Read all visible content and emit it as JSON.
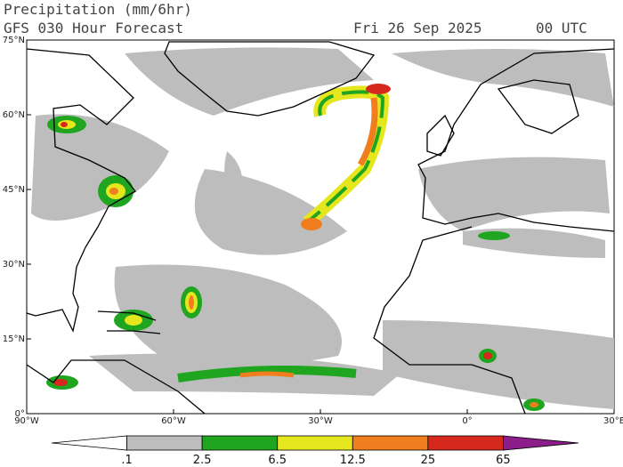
{
  "header": {
    "title": "Precipitation (mm/6hr)",
    "model": "GFS 030 Hour Forecast",
    "date": "Fri 26 Sep 2025",
    "time": "00 UTC"
  },
  "map": {
    "lat_labels": [
      "75°N",
      "60°N",
      "45°N",
      "30°N",
      "15°N",
      "0°"
    ],
    "lon_labels": [
      "90°W",
      "60°W",
      "30°W",
      "0°",
      "30°E"
    ]
  },
  "legend": {
    "levels": [
      {
        "value": 0.1,
        "label": ".1"
      },
      2.5,
      6.5,
      12.5,
      25,
      65
    ],
    "colors": [
      "#ffffff",
      "#bdbdbd",
      "#1fa51f",
      "#e6e61e",
      "#f07d1e",
      "#d7281e",
      "#8c1e8c"
    ]
  }
}
